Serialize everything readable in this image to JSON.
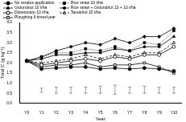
{
  "chart_data": {
    "type": "line",
    "x_label": "Year",
    "y_label": "Total C (g kg⁻¹)",
    "categories": [
      "Y0",
      "Y1",
      "Y2",
      "Y3",
      "Y4",
      "Y5",
      "Y6",
      "Y7",
      "Y8",
      "Y9",
      "Y10"
    ],
    "ylim": [
      0,
      4
    ],
    "yticks": [
      {
        "value": 0,
        "label": "0.0"
      },
      0.5,
      {
        "value": 1,
        "label": "1.0"
      },
      1.5,
      {
        "value": 2,
        "label": "2.0"
      },
      2.5,
      {
        "value": 3,
        "label": "3.0"
      },
      3.5,
      {
        "value": 4,
        "label": "4.0"
      }
    ],
    "grid": false,
    "legend": "top",
    "series": [
      {
        "name": "No residue application",
        "color": "#000000",
        "marker": "circle",
        "line_style": "solid",
        "values": [
          2.1,
          1.7,
          1.75,
          1.8,
          1.8,
          1.7,
          1.75,
          1.7,
          1.75,
          1.7,
          1.6
        ]
      },
      {
        "name": "Rice straw 10 t/ha",
        "color": "#000000",
        "marker": "square",
        "line_style": "dotted",
        "values": [
          2.1,
          2.3,
          2.5,
          2.5,
          2.7,
          2.6,
          2.8,
          2.6,
          3.0,
          2.9,
          3.6
        ]
      },
      {
        "name": "Groundnut 10 t/ha",
        "color": "#000000",
        "marker": "triangle",
        "line_style": "solid",
        "values": [
          2.1,
          2.2,
          2.4,
          2.4,
          2.5,
          2.5,
          2.7,
          2.6,
          2.8,
          2.8,
          3.3
        ]
      },
      {
        "name": "Rice straw + Groundnut 10 + 10 t/ha",
        "color": "#000000",
        "marker": "diamond",
        "line_style": "solid",
        "values": [
          2.1,
          2.3,
          2.6,
          2.8,
          3.0,
          2.9,
          3.2,
          3.0,
          3.3,
          3.3,
          3.7
        ]
      },
      {
        "name": "Dipterocarp 10 t/ha",
        "color": "#000000",
        "marker": "open-circle",
        "line_style": "solid",
        "values": [
          2.1,
          1.9,
          2.0,
          2.1,
          2.2,
          2.1,
          2.3,
          2.2,
          2.4,
          2.4,
          2.8
        ]
      },
      {
        "name": "Tamarind 10 t/ha",
        "color": "#000000",
        "marker": "open-triangle",
        "line_style": "dashed",
        "values": [
          2.1,
          2.0,
          2.1,
          2.2,
          2.4,
          2.2,
          2.4,
          2.3,
          2.5,
          2.5,
          3.0
        ]
      },
      {
        "name": "Ploughing 6 times/year",
        "color": "#000000",
        "marker": "open-square",
        "line_style": "solid",
        "values": [
          2.1,
          1.8,
          1.9,
          1.9,
          2.0,
          1.8,
          1.9,
          1.9,
          2.0,
          1.8,
          1.5
        ]
      }
    ],
    "error_bars": {
      "low": [
        null,
        0.55,
        0.5,
        0.5,
        0.5,
        0.5,
        0.45,
        0.5,
        0.5,
        0.5,
        0.5
      ],
      "high": [
        null,
        0.75,
        0.8,
        0.8,
        0.8,
        0.85,
        0.9,
        0.8,
        0.85,
        0.8,
        0.8
      ]
    }
  }
}
